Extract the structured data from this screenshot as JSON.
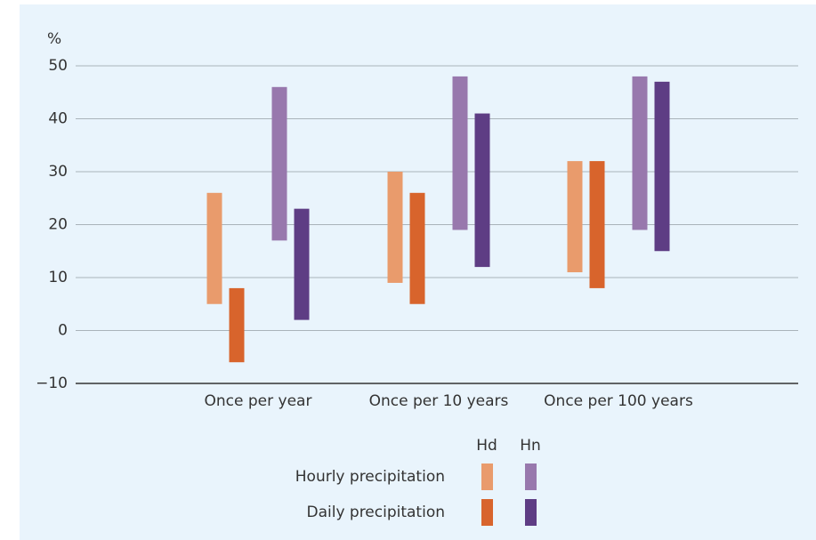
{
  "chart_data": {
    "type": "floating-bar",
    "y_label": "%",
    "categories": [
      "Once per year",
      "Once per 10 years",
      "Once per 100 years"
    ],
    "series": [
      {
        "row": "Hourly precipitation",
        "column": "Hd",
        "color": "#e99b6c",
        "low": [
          5,
          9,
          11
        ],
        "high": [
          26,
          30,
          32
        ]
      },
      {
        "row": "Daily precipitation",
        "column": "Hd",
        "color": "#d8642c",
        "low": [
          -6,
          5,
          8
        ],
        "high": [
          8,
          26,
          32
        ]
      },
      {
        "row": "Hourly precipitation",
        "column": "Hn",
        "color": "#9878ad",
        "low": [
          17,
          19,
          19
        ],
        "high": [
          46,
          48,
          48
        ]
      },
      {
        "row": "Daily precipitation",
        "column": "Hn",
        "color": "#5e3d84",
        "low": [
          2,
          12,
          15
        ],
        "high": [
          23,
          41,
          47
        ]
      }
    ],
    "ylim": [
      -10,
      50
    ],
    "yticks": [
      {
        "value": -10,
        "label": "−10"
      },
      0,
      10,
      20,
      30,
      40,
      50
    ],
    "grid": true
  }
}
